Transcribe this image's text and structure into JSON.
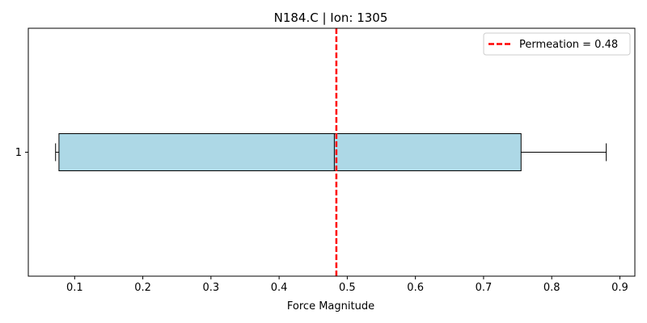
{
  "chart_data": {
    "type": "boxplot",
    "orientation": "horizontal",
    "title": "N184.C | Ion: 1305",
    "xlabel": "Force Magnitude",
    "ylabel": "",
    "xlim": [
      0.032,
      0.922
    ],
    "xticks": [
      0.1,
      0.2,
      0.3,
      0.4,
      0.5,
      0.6,
      0.7,
      0.8,
      0.9
    ],
    "xtick_labels": [
      "0.1",
      "0.2",
      "0.3",
      "0.4",
      "0.5",
      "0.6",
      "0.7",
      "0.8",
      "0.9"
    ],
    "categories": [
      "1"
    ],
    "boxes": [
      {
        "label": "1",
        "whisker_low": 0.072,
        "q1": 0.077,
        "median": 0.481,
        "q3": 0.755,
        "whisker_high": 0.88
      }
    ],
    "reference_line": {
      "value": 0.484,
      "label": "Permeation = 0.48",
      "color": "#ff0000",
      "style": "dashed"
    },
    "legend": {
      "position": "top-right",
      "entries": [
        "Permeation = 0.48"
      ]
    },
    "grid": false,
    "colors": {
      "box_fill": "#add8e6",
      "box_edge": "#000000",
      "median": "#000000",
      "reference": "#ff0000"
    }
  }
}
